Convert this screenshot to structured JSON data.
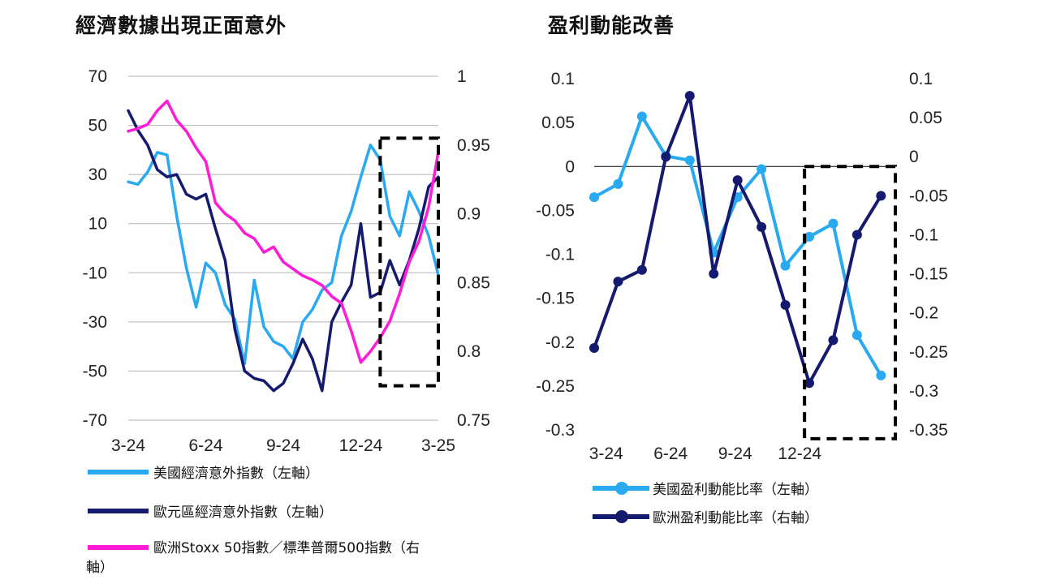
{
  "colors": {
    "us": "#29a9ef",
    "eu": "#141a6e",
    "ratio": "#ff1bd8",
    "grid": "#b5b5b5"
  },
  "chart_data": [
    {
      "type": "line",
      "title": "經濟數據出現正面意外",
      "x_ticks": [
        "3-24",
        "6-24",
        "9-24",
        "12-24",
        "3-25"
      ],
      "y_left": {
        "min": -70,
        "max": 70,
        "ticks": [
          "70",
          "50",
          "30",
          "10",
          "-10",
          "-30",
          "-50",
          "-70"
        ]
      },
      "y_right": {
        "min": 0.75,
        "max": 1.0,
        "ticks": [
          "1",
          "0.95",
          "0.9",
          "0.85",
          "0.8",
          "0.75"
        ]
      },
      "series": [
        {
          "name": "美國經濟意外指數（左軸",
          "axis": "left",
          "color": "#29a9ef",
          "x": [
            0,
            4,
            8,
            12,
            16,
            20,
            24,
            28,
            32,
            36,
            40,
            44,
            48,
            52,
            56,
            60,
            64,
            68,
            72,
            76,
            80,
            84,
            88,
            92,
            96,
            100,
            104,
            108,
            112,
            116,
            120,
            124,
            128
          ],
          "values": [
            27,
            26,
            31,
            39,
            38,
            13,
            -8,
            -24,
            -6,
            -10,
            -23,
            -29,
            -47,
            -13,
            -32,
            -38,
            -40,
            -45,
            -30,
            -25,
            -17,
            -14,
            5,
            15,
            29,
            42,
            36,
            13,
            5,
            23,
            15,
            5,
            -11
          ]
        },
        {
          "name": "歐元區經濟意外指數（左軸",
          "axis": "left",
          "color": "#141a6e",
          "x": [
            0,
            4,
            8,
            12,
            16,
            20,
            24,
            28,
            32,
            36,
            40,
            44,
            48,
            52,
            56,
            60,
            64,
            68,
            72,
            76,
            80,
            84,
            88,
            92,
            96,
            100,
            104,
            108,
            112,
            116,
            120,
            124,
            128
          ],
          "values": [
            56,
            48,
            42,
            32,
            29,
            30,
            22,
            20,
            22,
            8,
            -5,
            -33,
            -50,
            -53,
            -54,
            -58,
            -55,
            -47,
            -37,
            -45,
            -58,
            -30,
            -22,
            -15,
            10,
            -20,
            -18,
            -5,
            -15,
            -5,
            8,
            25,
            29
          ]
        },
        {
          "name": "歐洲Stoxx 50指數／標準普爾500指數（右軸",
          "axis": "right",
          "color": "#ff1bd8",
          "x": [
            0,
            4,
            8,
            12,
            16,
            20,
            24,
            28,
            32,
            36,
            40,
            44,
            48,
            52,
            56,
            60,
            64,
            68,
            72,
            76,
            80,
            84,
            88,
            92,
            96,
            100,
            104,
            108,
            112,
            116,
            120,
            124,
            128
          ],
          "values": [
            0.96,
            0.962,
            0.965,
            0.975,
            0.982,
            0.968,
            0.96,
            0.948,
            0.938,
            0.908,
            0.9,
            0.895,
            0.886,
            0.882,
            0.872,
            0.876,
            0.865,
            0.86,
            0.855,
            0.852,
            0.848,
            0.84,
            0.835,
            0.815,
            0.792,
            0.8,
            0.81,
            0.822,
            0.842,
            0.865,
            0.88,
            0.905,
            0.945
          ]
        }
      ]
    },
    {
      "type": "line",
      "title": "盈利動能改善",
      "x_ticks": [
        "3-24",
        "6-24",
        "9-24",
        "12-24"
      ],
      "y_left": {
        "min": -0.3,
        "max": 0.1,
        "ticks": [
          "0.1",
          "0.05",
          "0",
          "-0.05",
          "-0.1",
          "-0.15",
          "-0.2",
          "-0.25",
          "-0.3"
        ]
      },
      "y_right": {
        "min": -0.35,
        "max": 0.1,
        "ticks": [
          "0.1",
          "0.05",
          "0",
          "-0.05",
          "-0.1",
          "-0.15",
          "-0.2",
          "-0.25",
          "-0.3",
          "-0.35"
        ]
      },
      "series": [
        {
          "name": "美國盈利動能比率（左軸）",
          "axis": "left",
          "color": "#29a9ef",
          "x": [
            0,
            1,
            2,
            3,
            4,
            5,
            6,
            7,
            8,
            9,
            10,
            11,
            12
          ],
          "values": [
            -0.035,
            -0.02,
            0.057,
            0.012,
            0.007,
            -0.098,
            -0.035,
            -0.003,
            -0.113,
            -0.08,
            -0.065,
            -0.192,
            -0.238
          ]
        },
        {
          "name": "歐洲盈利動能比率（右軸）",
          "axis": "right",
          "color": "#141a6e",
          "x": [
            0,
            1,
            2,
            3,
            4,
            5,
            6,
            7,
            8,
            9,
            10,
            11,
            12
          ],
          "values": [
            -0.245,
            -0.16,
            -0.145,
            0,
            0.078,
            -0.15,
            -0.03,
            -0.09,
            -0.19,
            -0.29,
            -0.235,
            -0.1,
            -0.05
          ]
        }
      ]
    }
  ],
  "legend_left": [
    {
      "label": "美國經濟意外指數（左軸）"
    },
    {
      "label": "歐元區經濟意外指數（左軸）"
    },
    {
      "label": "歐洲Stoxx 50指數／標準普爾500指數（右",
      "label2": "軸）"
    }
  ],
  "legend_right": [
    {
      "label": "美國盈利動能比率（左軸）"
    },
    {
      "label": "歐洲盈利動能比率（右軸）"
    }
  ]
}
